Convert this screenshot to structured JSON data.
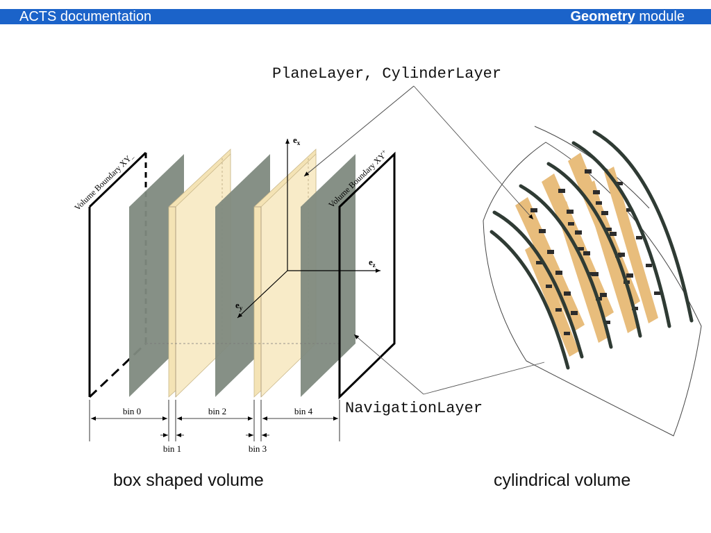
{
  "header": {
    "left_title": "ACTS documentation",
    "right_bold": "Geometry",
    "right_rest": " module"
  },
  "labels": {
    "plane_cylinder": "PlaneLayer, CylinderLayer",
    "navigation": "NavigationLayer",
    "boundary_minus": "Volume Boundary XY",
    "boundary_minus_sub": "–",
    "boundary_plus": "Volume Boundary XY",
    "boundary_plus_sub": "+",
    "axis_x": "e",
    "axis_x_sub": "x",
    "axis_y": "e",
    "axis_y_sub": "y",
    "axis_z": "e",
    "axis_z_sub": "z"
  },
  "bins": {
    "bin0": "bin 0",
    "bin1": "bin 1",
    "bin2": "bin 2",
    "bin3": "bin 3",
    "bin4": "bin 4"
  },
  "captions": {
    "box": "box shaped volume",
    "cylinder": "cylindrical volume"
  },
  "colors": {
    "header_bg": "#1b63c9",
    "gray_layer": "#7f8a80",
    "cream_layer": "#f7e6bd",
    "sensor_fill": "#e8bd7c",
    "dark_arc": "#2f3b34"
  }
}
